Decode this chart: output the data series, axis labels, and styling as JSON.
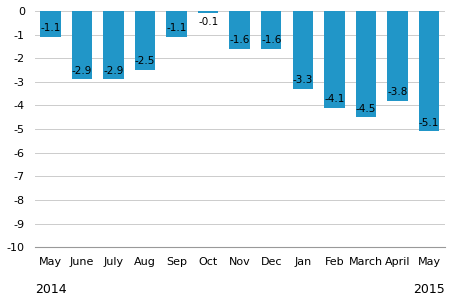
{
  "categories": [
    "May",
    "June",
    "July",
    "Aug",
    "Sep",
    "Oct",
    "Nov",
    "Dec",
    "Jan",
    "Feb",
    "March",
    "April",
    "May"
  ],
  "values": [
    -1.1,
    -2.9,
    -2.9,
    -2.5,
    -1.1,
    -0.1,
    -1.6,
    -1.6,
    -3.3,
    -4.1,
    -4.5,
    -3.8,
    -5.1
  ],
  "bar_color": "#2196c8",
  "ylim": [
    -10,
    0
  ],
  "yticks": [
    0,
    -1,
    -2,
    -3,
    -4,
    -5,
    -6,
    -7,
    -8,
    -9,
    -10
  ],
  "year_labels": [
    [
      "2014",
      0
    ],
    [
      "2015",
      12
    ]
  ],
  "label_fontsize": 7.5,
  "tick_fontsize": 8,
  "year_fontsize": 9,
  "background_color": "#ffffff",
  "grid_color": "#cccccc"
}
